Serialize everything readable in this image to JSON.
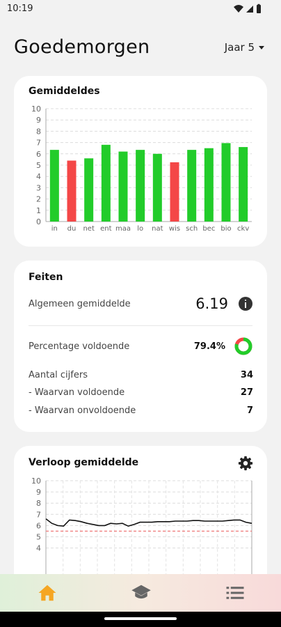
{
  "status_bar": {
    "time": "10:19"
  },
  "header": {
    "greeting": "Goedemorgen",
    "year_selector": "Jaar 5"
  },
  "averages_card": {
    "title": "Gemiddeldes",
    "chart_data": {
      "type": "bar",
      "title": "Gemiddeldes",
      "categories": [
        "in",
        "du",
        "net",
        "ent",
        "maa",
        "lo",
        "nat",
        "wis",
        "sch",
        "bec",
        "bio",
        "ckv"
      ],
      "values": [
        6.35,
        5.4,
        5.6,
        6.8,
        6.2,
        6.35,
        6.0,
        5.25,
        6.35,
        6.5,
        6.95,
        6.6
      ],
      "passing_threshold": 5.5,
      "colors": {
        "pass": "#22cc2a",
        "fail": "#f44747"
      },
      "ylim": [
        0,
        10
      ],
      "yticks": [
        "0",
        "1",
        "2",
        "3",
        "4",
        "5",
        "6",
        "7",
        "8",
        "9",
        "10"
      ],
      "grid": true
    }
  },
  "facts_card": {
    "title": "Feiten",
    "overall_average_label": "Algemeen gemiddelde",
    "overall_average_value": "6.19",
    "pct_sufficient_label": "Percentage voldoende",
    "pct_sufficient_value": "79.4%",
    "pct_sufficient_fraction": 0.794,
    "colors": {
      "pass": "#22cc2a",
      "fail": "#f44747"
    },
    "grade_count_label": "Aantal cijfers",
    "grade_count_value": "34",
    "sufficient_label": "- Waarvan voldoende",
    "sufficient_value": "27",
    "insufficient_label": "- Waarvan onvoldoende",
    "insufficient_value": "7"
  },
  "trend_card": {
    "title": "Verloop gemiddelde",
    "chart_data": {
      "type": "line",
      "title": "Verloop gemiddelde",
      "ylim": [
        0,
        10
      ],
      "yticks": [
        "7",
        "8",
        "9",
        "10"
      ],
      "visible_yticks_partial": [
        "4",
        "5",
        "6"
      ],
      "threshold_line": 5.5,
      "series": [
        {
          "values": [
            6.6,
            6.2,
            6.0,
            5.95,
            6.5,
            6.45,
            6.35,
            6.2,
            6.1,
            6.0,
            6.0,
            6.2,
            6.15,
            6.2,
            5.95,
            6.1,
            6.3,
            6.3,
            6.3,
            6.35,
            6.35,
            6.35,
            6.4,
            6.4,
            6.4,
            6.45,
            6.45,
            6.4,
            6.4,
            6.4,
            6.4,
            6.45,
            6.5,
            6.5,
            6.3,
            6.2
          ]
        }
      ],
      "grid": true
    }
  },
  "bottom_nav": {
    "items": [
      "home-icon",
      "graduation-cap-icon",
      "list-icon"
    ],
    "active": "home-icon"
  }
}
